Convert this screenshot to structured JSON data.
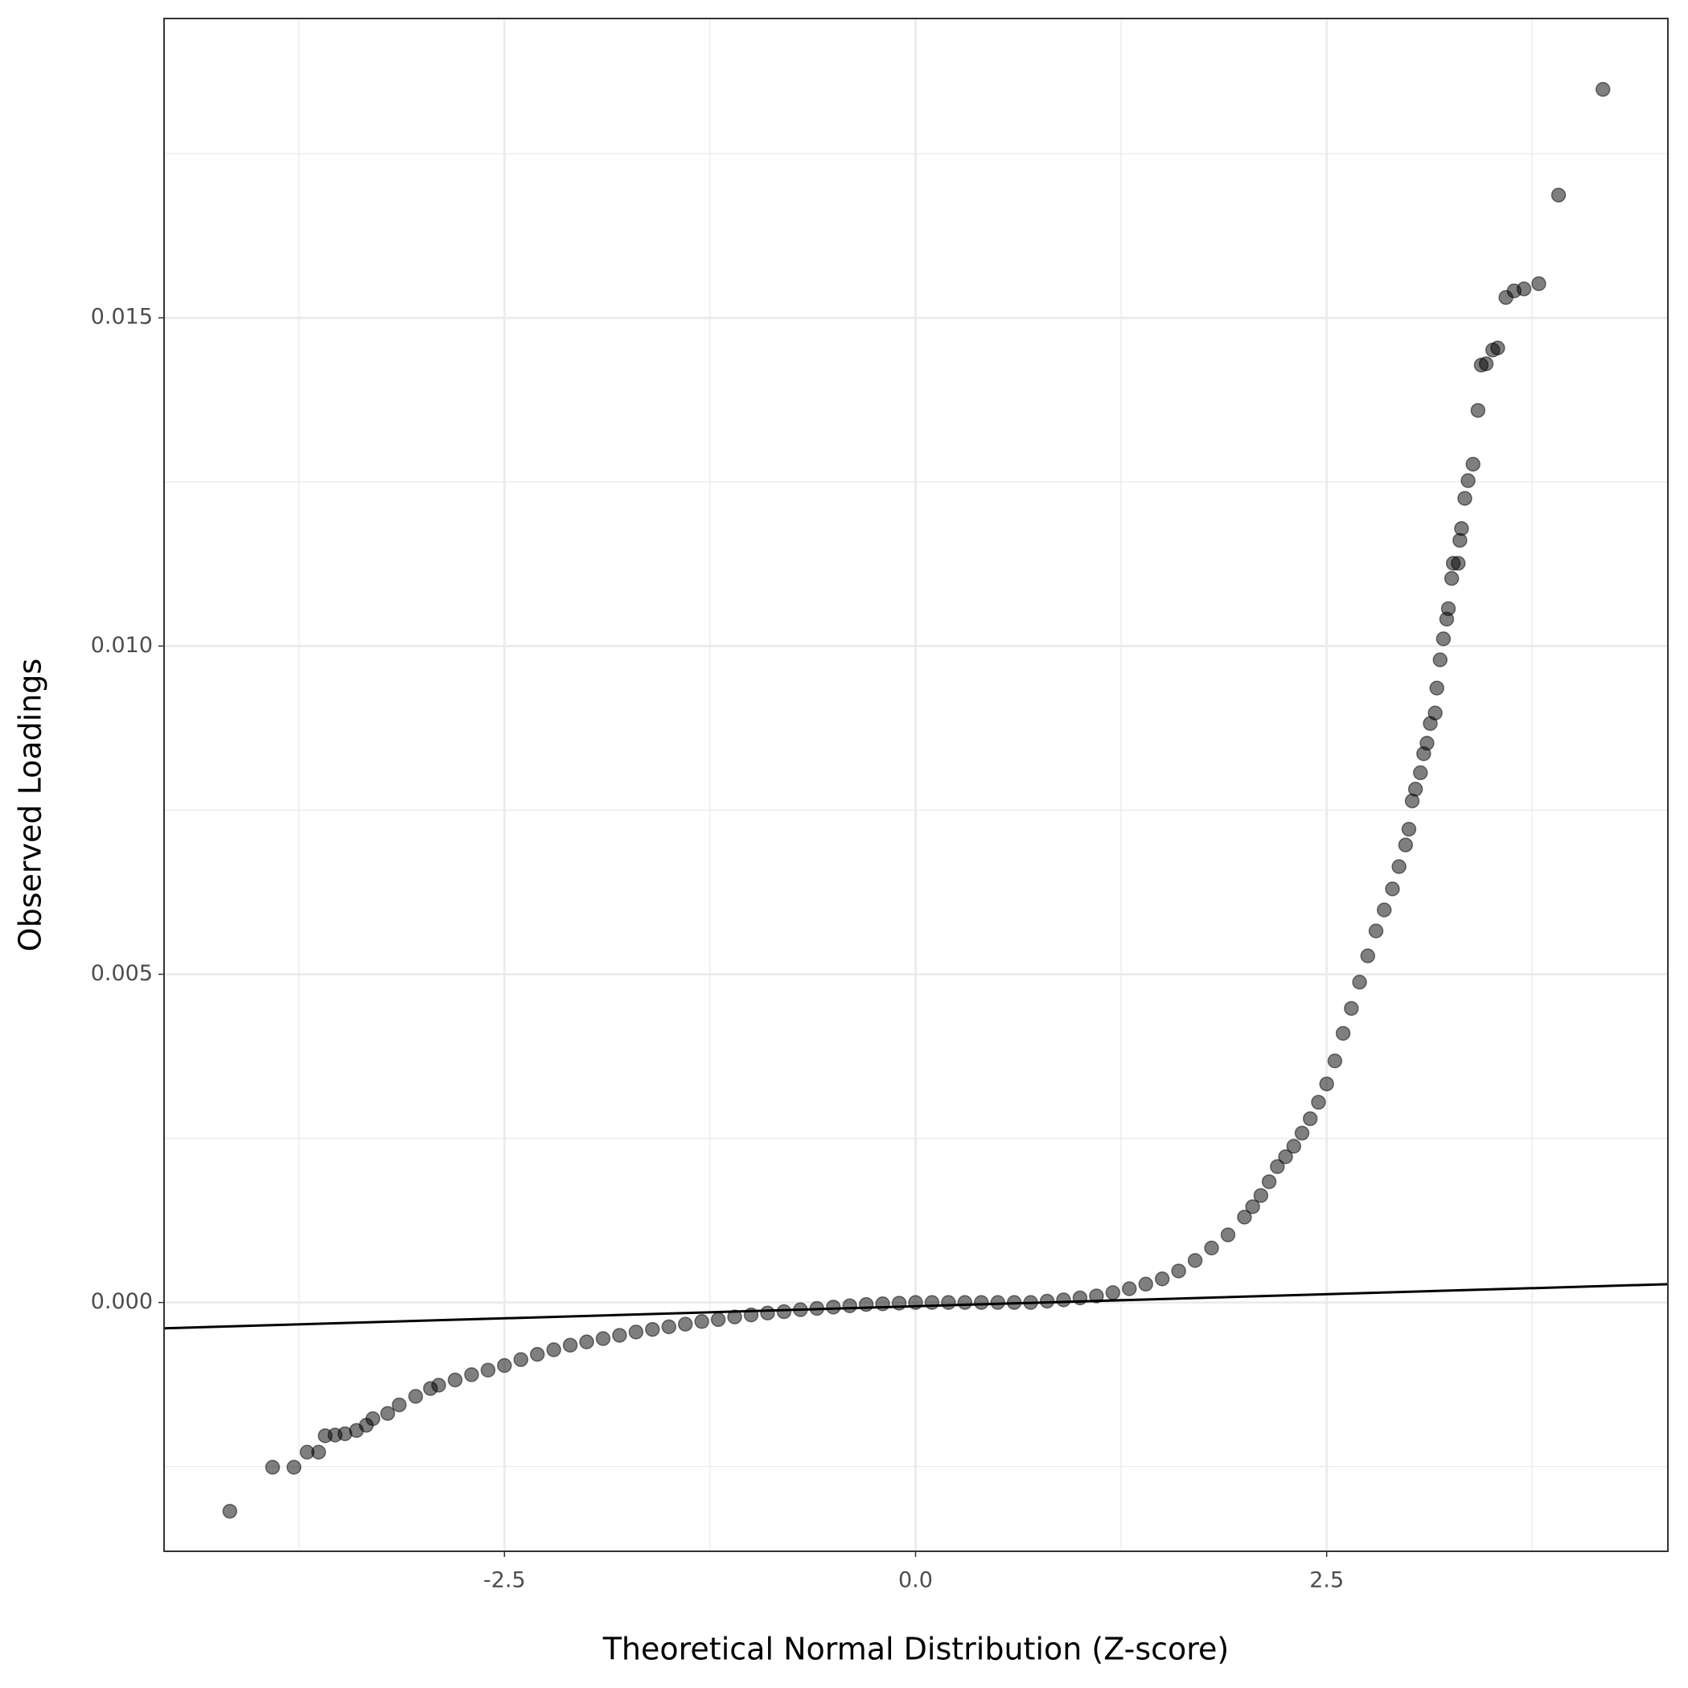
{
  "chart_data": {
    "type": "scatter",
    "x_label": "Theoretical Normal Distribution (Z-score)",
    "y_label": "Observed Loadings",
    "xlim": [
      -4.57,
      4.575
    ],
    "ylim": [
      -0.00379,
      0.01956
    ],
    "xticks": [
      -2.5,
      {
        "value": 0,
        "label": "0.0"
      },
      2.5
    ],
    "yticks": [
      {
        "value": 0,
        "label": "0.000"
      },
      {
        "value": 0.005,
        "label": "0.005"
      },
      {
        "value": 0.01,
        "label": "0.010"
      },
      {
        "value": 0.015,
        "label": "0.015"
      }
    ],
    "grid": true,
    "color": "#000000",
    "opacity": 0.5,
    "x": [
      -4.17,
      -3.91,
      -3.78,
      -3.7,
      -3.63,
      -3.59,
      -3.53,
      -3.47,
      -3.4,
      -3.34,
      -3.3,
      -3.21,
      -3.14,
      -3.04,
      -2.95,
      -2.9,
      -2.8,
      -2.7,
      -2.6,
      -2.5,
      -2.4,
      -2.3,
      -2.2,
      -2.1,
      -2.0,
      -1.9,
      -1.8,
      -1.7,
      -1.6,
      -1.5,
      -1.4,
      -1.3,
      -1.2,
      -1.1,
      -1.0,
      -0.9,
      -0.8,
      -0.7,
      -0.6,
      -0.5,
      -0.4,
      -0.3,
      -0.2,
      -0.1,
      0.0,
      0.1,
      0.2,
      0.3,
      0.4,
      0.5,
      0.6,
      0.7,
      0.8,
      0.9,
      1.0,
      1.1,
      1.2,
      1.3,
      1.4,
      1.5,
      1.6,
      1.7,
      1.8,
      1.9,
      2.0,
      2.05,
      2.1,
      2.15,
      2.2,
      2.25,
      2.3,
      2.35,
      2.4,
      2.45,
      2.5,
      2.55,
      2.6,
      2.65,
      2.7,
      2.75,
      2.8,
      2.85,
      2.9,
      2.94,
      2.98,
      3.0,
      3.02,
      3.04,
      3.07,
      3.09,
      3.11,
      3.13,
      3.16,
      3.17,
      3.19,
      3.21,
      3.23,
      3.24,
      3.26,
      3.27,
      3.3,
      3.31,
      3.32,
      3.34,
      3.36,
      3.39,
      3.42,
      3.44,
      3.47,
      3.51,
      3.54,
      3.59,
      3.64,
      3.7,
      3.79,
      3.91,
      4.18
    ],
    "y": [
      -0.00318,
      -0.00251,
      -0.00251,
      -0.00228,
      -0.00228,
      -0.00203,
      -0.00202,
      -0.002,
      -0.00195,
      -0.00187,
      -0.00177,
      -0.00169,
      -0.00156,
      -0.00143,
      -0.00131,
      -0.00126,
      -0.00118,
      -0.0011,
      -0.00103,
      -0.00096,
      -0.00087,
      -0.00079,
      -0.00072,
      -0.00065,
      -0.0006,
      -0.00055,
      -0.0005,
      -0.00045,
      -0.00041,
      -0.00037,
      -0.00033,
      -0.00029,
      -0.00026,
      -0.00022,
      -0.00019,
      -0.00016,
      -0.00014,
      -0.00011,
      -9e-05,
      -7e-05,
      -5e-05,
      -3e-05,
      -2e-05,
      -1e-05,
      0,
      0,
      0,
      0,
      0,
      0,
      0,
      0,
      2e-05,
      4e-05,
      7e-05,
      0.0001,
      0.00015,
      0.00021,
      0.00028,
      0.00036,
      0.00048,
      0.00064,
      0.00083,
      0.00103,
      0.0013,
      0.00146,
      0.00163,
      0.00184,
      0.00207,
      0.00222,
      0.00238,
      0.00258,
      0.0028,
      0.00305,
      0.00333,
      0.00368,
      0.0041,
      0.00448,
      0.00488,
      0.00528,
      0.00566,
      0.00598,
      0.0063,
      0.00664,
      0.00697,
      0.00721,
      0.00764,
      0.00782,
      0.00807,
      0.00836,
      0.00852,
      0.00882,
      0.00898,
      0.00936,
      0.00979,
      0.01011,
      0.01041,
      0.01057,
      0.01103,
      0.01126,
      0.01126,
      0.01161,
      0.01179,
      0.01225,
      0.01252,
      0.01277,
      0.01359,
      0.01428,
      0.0143,
      0.01451,
      0.01454,
      0.01531,
      0.01541,
      0.01544,
      0.01552,
      0.01687,
      0.01848
    ],
    "reference_line": {
      "color": "#000000",
      "x": [
        -4.57,
        4.575
      ],
      "y": [
        -0.000393,
        0.000279
      ]
    }
  }
}
